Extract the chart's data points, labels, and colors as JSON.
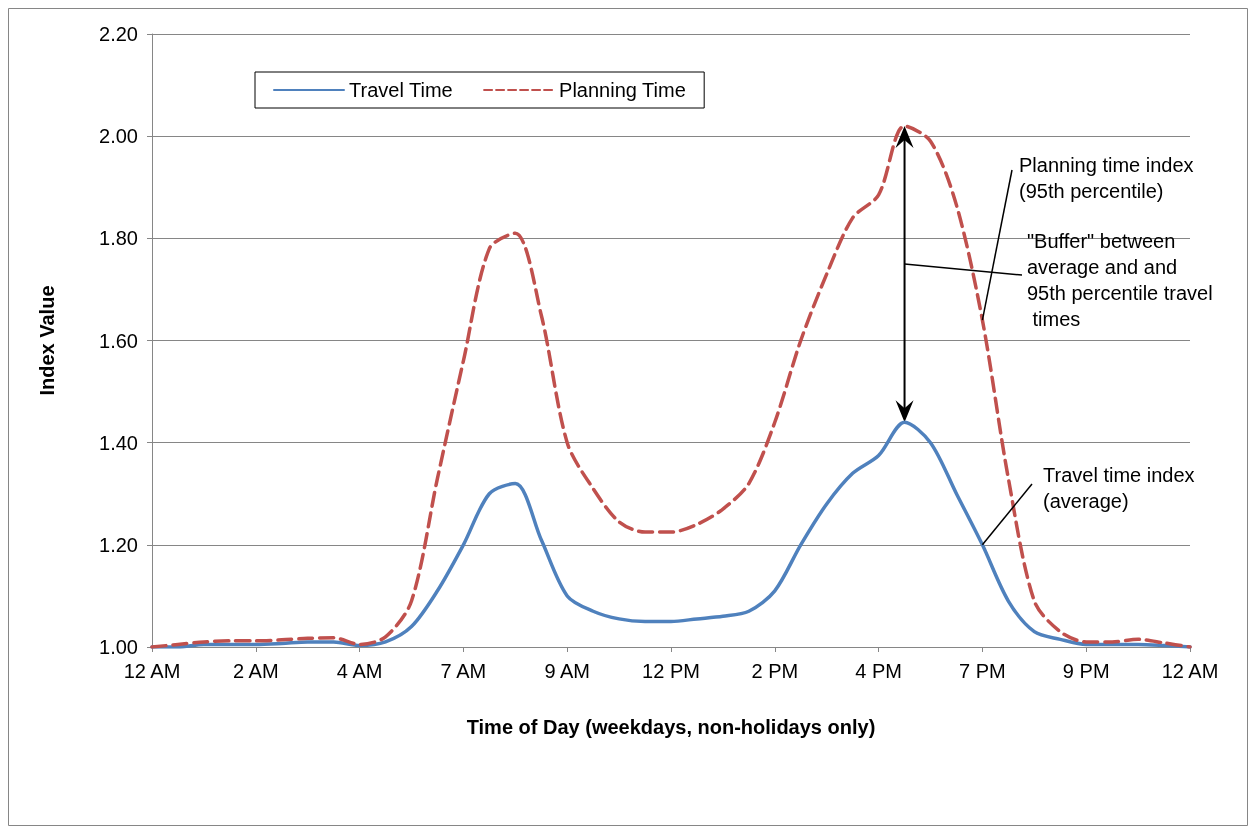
{
  "chart_data": {
    "type": "line",
    "xlabel": "Time of Day (weekdays, non-holidays only)",
    "ylabel": "Index Value",
    "categories": [
      "12 AM",
      null,
      null,
      null,
      "2 AM",
      null,
      null,
      null,
      "4 AM",
      null,
      null,
      null,
      "7 AM",
      null,
      null,
      null,
      "9 AM",
      null,
      null,
      null,
      "12 PM",
      null,
      null,
      null,
      "2 PM",
      null,
      null,
      null,
      "4 PM",
      null,
      null,
      null,
      "7 PM",
      null,
      null,
      null,
      "9 PM",
      null,
      null,
      null,
      "12 AM"
    ],
    "series": [
      {
        "name": "Travel Time",
        "color": "#4f81bd",
        "line_style": "solid",
        "values": [
          1.0,
          1.0,
          1.005,
          1.005,
          1.005,
          1.007,
          1.01,
          1.01,
          1.003,
          1.01,
          1.04,
          1.11,
          1.2,
          1.3,
          1.32,
          1.21,
          1.1,
          1.07,
          1.055,
          1.05,
          1.05,
          1.055,
          1.06,
          1.07,
          1.11,
          1.2,
          1.28,
          1.34,
          1.375,
          1.44,
          1.4,
          1.3,
          1.2,
          1.09,
          1.03,
          1.015,
          1.005,
          1.005,
          1.005,
          1.003,
          1.0
        ]
      },
      {
        "name": "Planning Time",
        "color": "#c0504d",
        "line_style": "dashed",
        "values": [
          1.0,
          1.005,
          1.01,
          1.012,
          1.012,
          1.014,
          1.017,
          1.018,
          1.005,
          1.02,
          1.09,
          1.33,
          1.56,
          1.78,
          1.81,
          1.65,
          1.4,
          1.31,
          1.245,
          1.225,
          1.225,
          1.24,
          1.27,
          1.32,
          1.44,
          1.6,
          1.73,
          1.84,
          1.885,
          2.02,
          1.99,
          1.865,
          1.64,
          1.33,
          1.09,
          1.03,
          1.01,
          1.01,
          1.015,
          1.008,
          1.0
        ]
      }
    ],
    "ylim": [
      1,
      2.2
    ],
    "yticks": [
      {
        "value": 1,
        "label": "1.00"
      },
      {
        "value": 1.2,
        "label": "1.20"
      },
      {
        "value": 1.4,
        "label": "1.40"
      },
      {
        "value": 1.6,
        "label": "1.60"
      },
      {
        "value": 1.8,
        "label": "1.80"
      },
      {
        "value": 2,
        "label": "2.00"
      },
      {
        "value": 2.2,
        "label": "2.20"
      }
    ],
    "grid": "y",
    "legend": "top left",
    "marker": "none",
    "annotations": [
      {
        "text": "Planning time index (95th percentile)",
        "x": "7 PM",
        "y": 1.64
      },
      "\"Buffer\" between average and and 95th percentile travel times",
      {
        "text": "Travel time index (average)",
        "x": "7 PM",
        "y": 1.2
      }
    ]
  }
}
